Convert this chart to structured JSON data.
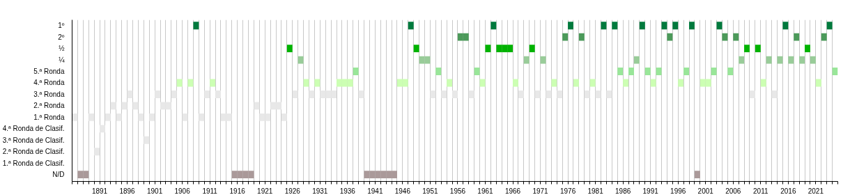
{
  "chart_data": {
    "type": "bar",
    "orientation": "horizontal",
    "grid": "x",
    "categories": [
      "1º",
      "2º",
      "½",
      "¼",
      "5.ª Ronda",
      "4.ª Ronda",
      "3.ª Ronda",
      "2.ª Ronda",
      "1.ª Ronda",
      "4.ª Ronda de Clasif.",
      "3.ª Ronda de Clasif.",
      "2.ª Ronda de Clasif.",
      "1.ª Ronda de Clasif.",
      "N/D"
    ],
    "xlim": [
      1886,
      2025
    ],
    "xticks": [
      {
        "value": 1886,
        "label": null
      },
      {
        "value": 1887,
        "label": null
      },
      {
        "value": 1888,
        "label": null
      },
      {
        "value": 1889,
        "label": null
      },
      {
        "value": 1890,
        "label": null
      },
      1891,
      {
        "value": 1892,
        "label": null
      },
      {
        "value": 1893,
        "label": null
      },
      {
        "value": 1894,
        "label": null
      },
      {
        "value": 1895,
        "label": null
      },
      1896,
      {
        "value": 1897,
        "label": null
      },
      {
        "value": 1898,
        "label": null
      },
      {
        "value": 1899,
        "label": null
      },
      {
        "value": 1900,
        "label": null
      },
      1901,
      {
        "value": 1902,
        "label": null
      },
      {
        "value": 1903,
        "label": null
      },
      {
        "value": 1904,
        "label": null
      },
      {
        "value": 1905,
        "label": null
      },
      1906,
      {
        "value": 1907,
        "label": null
      },
      {
        "value": 1908,
        "label": null
      },
      {
        "value": 1909,
        "label": null
      },
      {
        "value": 1910,
        "label": null
      },
      1911,
      {
        "value": 1912,
        "label": null
      },
      {
        "value": 1913,
        "label": null
      },
      {
        "value": 1914,
        "label": null
      },
      {
        "value": 1915,
        "label": null
      },
      1916,
      {
        "value": 1917,
        "label": null
      },
      {
        "value": 1918,
        "label": null
      },
      {
        "value": 1919,
        "label": null
      },
      {
        "value": 1920,
        "label": null
      },
      1921,
      {
        "value": 1922,
        "label": null
      },
      {
        "value": 1923,
        "label": null
      },
      {
        "value": 1924,
        "label": null
      },
      {
        "value": 1925,
        "label": null
      },
      1926,
      {
        "value": 1927,
        "label": null
      },
      {
        "value": 1928,
        "label": null
      },
      {
        "value": 1929,
        "label": null
      },
      {
        "value": 1930,
        "label": null
      },
      1931,
      {
        "value": 1932,
        "label": null
      },
      {
        "value": 1933,
        "label": null
      },
      {
        "value": 1934,
        "label": null
      },
      {
        "value": 1935,
        "label": null
      },
      1936,
      {
        "value": 1937,
        "label": null
      },
      {
        "value": 1938,
        "label": null
      },
      {
        "value": 1939,
        "label": null
      },
      {
        "value": 1940,
        "label": null
      },
      1941,
      {
        "value": 1942,
        "label": null
      },
      {
        "value": 1943,
        "label": null
      },
      {
        "value": 1944,
        "label": null
      },
      {
        "value": 1945,
        "label": null
      },
      1946,
      {
        "value": 1947,
        "label": null
      },
      {
        "value": 1948,
        "label": null
      },
      {
        "value": 1949,
        "label": null
      },
      {
        "value": 1950,
        "label": null
      },
      1951,
      {
        "value": 1952,
        "label": null
      },
      {
        "value": 1953,
        "label": null
      },
      {
        "value": 1954,
        "label": null
      },
      {
        "value": 1955,
        "label": null
      },
      1956,
      {
        "value": 1957,
        "label": null
      },
      {
        "value": 1958,
        "label": null
      },
      {
        "value": 1959,
        "label": null
      },
      {
        "value": 1960,
        "label": null
      },
      1961,
      {
        "value": 1962,
        "label": null
      },
      {
        "value": 1963,
        "label": null
      },
      {
        "value": 1964,
        "label": null
      },
      {
        "value": 1965,
        "label": null
      },
      1966,
      {
        "value": 1967,
        "label": null
      },
      {
        "value": 1968,
        "label": null
      },
      {
        "value": 1969,
        "label": null
      },
      {
        "value": 1970,
        "label": null
      },
      1971,
      {
        "value": 1972,
        "label": null
      },
      {
        "value": 1973,
        "label": null
      },
      {
        "value": 1974,
        "label": null
      },
      {
        "value": 1975,
        "label": null
      },
      1976,
      {
        "value": 1977,
        "label": null
      },
      {
        "value": 1978,
        "label": null
      },
      {
        "value": 1979,
        "label": null
      },
      {
        "value": 1980,
        "label": null
      },
      1981,
      {
        "value": 1982,
        "label": null
      },
      {
        "value": 1983,
        "label": null
      },
      {
        "value": 1984,
        "label": null
      },
      {
        "value": 1985,
        "label": null
      },
      1986,
      {
        "value": 1987,
        "label": null
      },
      {
        "value": 1988,
        "label": null
      },
      {
        "value": 1989,
        "label": null
      },
      {
        "value": 1990,
        "label": null
      },
      1991,
      {
        "value": 1992,
        "label": null
      },
      {
        "value": 1993,
        "label": null
      },
      {
        "value": 1994,
        "label": null
      },
      {
        "value": 1995,
        "label": null
      },
      1996,
      {
        "value": 1997,
        "label": null
      },
      {
        "value": 1998,
        "label": null
      },
      {
        "value": 1999,
        "label": null
      },
      {
        "value": 2000,
        "label": null
      },
      2001,
      {
        "value": 2002,
        "label": null
      },
      {
        "value": 2003,
        "label": null
      },
      {
        "value": 2004,
        "label": null
      },
      {
        "value": 2005,
        "label": null
      },
      2006,
      {
        "value": 2007,
        "label": null
      },
      {
        "value": 2008,
        "label": null
      },
      {
        "value": 2009,
        "label": null
      },
      {
        "value": 2010,
        "label": null
      },
      2011,
      {
        "value": 2012,
        "label": null
      },
      {
        "value": 2013,
        "label": null
      },
      {
        "value": 2014,
        "label": null
      },
      {
        "value": 2015,
        "label": null
      },
      2016,
      {
        "value": 2017,
        "label": null
      },
      {
        "value": 2018,
        "label": null
      },
      {
        "value": 2019,
        "label": null
      },
      {
        "value": 2020,
        "label": null
      },
      2021,
      {
        "value": 2022,
        "label": null
      },
      {
        "value": 2023,
        "label": null
      },
      {
        "value": 2024,
        "label": null
      },
      {
        "value": 2025,
        "label": null
      }
    ],
    "series": [
      {
        "colors": [
          "#007a3d",
          "#4c9a5a",
          "#00b300",
          "#99cc99",
          "#99e699",
          "#ccffb3",
          "#e8e8e8",
          "#e8e8e8",
          "#e8e8e8",
          "#e8e8e8",
          "#e8e8e8",
          "#e8e8e8",
          null,
          "#aa9999"
        ],
        "base": [
          1908,
          1956,
          1925,
          1927,
          1937,
          1905,
          1896,
          1893,
          1886,
          1891,
          1899,
          1890,
          null,
          1887
        ],
        "values": [
          1,
          1,
          1,
          1,
          1,
          1,
          1,
          1,
          1,
          1,
          1,
          1,
          null,
          1
        ]
      },
      {
        "colors": [
          "#007a3d",
          "#4c9a5a",
          "#00b300",
          "#99cc99",
          "#99e699",
          "#ccffb3",
          "#e8e8e8",
          "#e8e8e8",
          "#e8e8e8",
          null,
          null,
          null,
          null,
          "#aa9999"
        ],
        "base": [
          1947,
          1957,
          1948,
          1949,
          1952,
          1907,
          1901,
          1895,
          1889,
          null,
          null,
          null,
          null,
          1888
        ],
        "values": [
          1,
          1,
          1,
          1,
          1,
          1,
          1,
          1,
          1,
          null,
          null,
          null,
          null,
          1
        ]
      },
      {
        "colors": [
          "#007a3d",
          "#4c9a5a",
          "#00b300",
          "#99cc99",
          "#99e699",
          "#ccffb3",
          "#e8e8e8",
          "#e8e8e8",
          "#e8e8e8",
          null,
          null,
          null,
          null,
          "#aa9999"
        ],
        "base": [
          1962,
          1975,
          1961,
          1950,
          1959,
          1911,
          1904,
          1897,
          1892,
          null,
          null,
          null,
          null,
          1915
        ],
        "values": [
          1,
          1,
          1,
          1,
          1,
          1,
          1,
          1,
          1,
          null,
          null,
          null,
          null,
          1
        ]
      },
      {
        "colors": [
          "#007a3d",
          "#4c9a5a",
          "#00b300",
          "#99cc99",
          "#99e699",
          "#ccffb3",
          "#e8e8e8",
          "#e8e8e8",
          "#e8e8e8",
          null,
          null,
          null,
          null,
          "#aa9999"
        ],
        "base": [
          1976,
          1978,
          1963,
          1968,
          1985,
          1928,
          1910,
          1902,
          1894,
          null,
          null,
          null,
          null,
          1916
        ],
        "values": [
          1,
          1,
          1,
          1,
          1,
          1,
          1,
          1,
          1,
          null,
          null,
          null,
          null,
          1
        ]
      },
      {
        "colors": [
          "#007a3d",
          "#4c9a5a",
          "#00b300",
          "#99cc99",
          "#99e699",
          "#ccffb3",
          "#e8e8e8",
          "#e8e8e8",
          "#e8e8e8",
          null,
          null,
          null,
          null,
          "#aa9999"
        ],
        "base": [
          1982,
          1994,
          1964,
          1971,
          1987,
          1930,
          1912,
          1903,
          1898,
          null,
          null,
          null,
          null,
          1917
        ],
        "values": [
          1,
          1,
          1,
          1,
          1,
          1,
          1,
          1,
          1,
          null,
          null,
          null,
          null,
          1
        ]
      },
      {
        "colors": [
          "#007a3d",
          "#4c9a5a",
          "#00b300",
          "#99cc99",
          "#99e699",
          "#ccffb3",
          "#e8e8e8",
          "#e8e8e8",
          "#e8e8e8",
          null,
          null,
          null,
          null,
          "#aa9999"
        ],
        "base": [
          1984,
          2004,
          1965,
          1988,
          1990,
          1934,
          1926,
          1919,
          1900,
          null,
          null,
          null,
          null,
          1918
        ],
        "values": [
          1,
          1,
          1,
          1,
          1,
          1,
          1,
          1,
          1,
          null,
          null,
          null,
          null,
          1
        ]
      },
      {
        "colors": [
          "#007a3d",
          "#4c9a5a",
          "#00b300",
          "#99cc99",
          "#99e699",
          "#ccffb3",
          "#e8e8e8",
          "#e8e8e8",
          "#e8e8e8",
          null,
          null,
          null,
          null,
          "#aa9999"
        ],
        "base": [
          1989,
          2006,
          1969,
          2007,
          1992,
          1935,
          1929,
          1922,
          1906,
          null,
          null,
          null,
          null,
          1939
        ],
        "values": [
          1,
          1,
          1,
          1,
          1,
          1,
          1,
          1,
          1,
          null,
          null,
          null,
          null,
          1
        ]
      },
      {
        "colors": [
          "#007a3d",
          "#4c9a5a",
          "#00b300",
          "#99cc99",
          "#99e699",
          "#ccffb3",
          "#e8e8e8",
          "#e8e8e8",
          "#e8e8e8",
          null,
          null,
          null,
          null,
          "#aa9999"
        ],
        "base": [
          1993,
          2017,
          2008,
          2012,
          1997,
          1936,
          1931,
          1923,
          1909,
          null,
          null,
          null,
          null,
          1940
        ],
        "values": [
          1,
          1,
          1,
          1,
          1,
          1,
          1,
          1,
          1,
          null,
          null,
          null,
          null,
          1
        ]
      },
      {
        "colors": [
          "#007a3d",
          "#4c9a5a",
          "#00b300",
          "#99cc99",
          "#99e699",
          "#ccffb3",
          "#e8e8e8",
          null,
          "#e8e8e8",
          null,
          null,
          null,
          null,
          "#aa9999"
        ],
        "base": [
          1995,
          2022,
          2010,
          2014,
          2002,
          1945,
          1932,
          null,
          1913,
          null,
          null,
          null,
          null,
          1941
        ],
        "values": [
          1,
          1,
          1,
          1,
          1,
          1,
          1,
          null,
          1,
          null,
          null,
          null,
          null,
          1
        ]
      },
      {
        "colors": [
          "#007a3d",
          null,
          "#00b300",
          "#99cc99",
          "#99e699",
          "#ccffb3",
          "#e8e8e8",
          null,
          "#e8e8e8",
          null,
          null,
          null,
          null,
          "#aa9999"
        ],
        "base": [
          1998,
          null,
          2019,
          2016,
          2005,
          1946,
          1933,
          null,
          1914,
          null,
          null,
          null,
          null,
          1942
        ],
        "values": [
          1,
          null,
          1,
          1,
          1,
          1,
          1,
          null,
          1,
          null,
          null,
          null,
          null,
          1
        ]
      },
      {
        "colors": [
          "#007a3d",
          null,
          null,
          "#99cc99",
          "#99e699",
          "#ccffb3",
          "#e8e8e8",
          null,
          "#e8e8e8",
          null,
          null,
          null,
          null,
          "#aa9999"
        ],
        "base": [
          2003,
          null,
          null,
          2018,
          2024,
          1954,
          1938,
          null,
          1920,
          null,
          null,
          null,
          null,
          1943
        ],
        "values": [
          1,
          null,
          null,
          1,
          1,
          1,
          1,
          null,
          1,
          null,
          null,
          null,
          null,
          1
        ]
      },
      {
        "colors": [
          "#007a3d",
          null,
          null,
          "#99cc99",
          null,
          "#ccffb3",
          "#e8e8e8",
          null,
          "#e8e8e8",
          null,
          null,
          null,
          null,
          "#aa9999"
        ],
        "base": [
          2015,
          null,
          null,
          2020,
          null,
          1960,
          1951,
          null,
          1921,
          null,
          null,
          null,
          null,
          1944
        ],
        "values": [
          1,
          null,
          null,
          1,
          null,
          1,
          1,
          null,
          1,
          null,
          null,
          null,
          null,
          1
        ]
      },
      {
        "colors": [
          "#007a3d",
          null,
          null,
          null,
          null,
          "#ccffb3",
          "#e8e8e8",
          null,
          "#e8e8e8",
          null,
          null,
          null,
          null,
          "#aa9999"
        ],
        "base": [
          2023,
          null,
          null,
          null,
          null,
          1966,
          1953,
          null,
          1924,
          null,
          null,
          null,
          null,
          1999
        ],
        "values": [
          1,
          null,
          null,
          null,
          null,
          1,
          1,
          null,
          1,
          null,
          null,
          null,
          null,
          1
        ]
      },
      {
        "colors": [
          null,
          null,
          null,
          null,
          null,
          "#ccffb3",
          "#e8e8e8",
          null,
          null,
          null,
          null,
          null,
          null,
          null
        ],
        "base": [
          null,
          null,
          null,
          null,
          null,
          1973,
          1955,
          null,
          null,
          null,
          null,
          null,
          null,
          null
        ],
        "values": [
          null,
          null,
          null,
          null,
          null,
          1,
          1,
          null,
          null,
          null,
          null,
          null,
          null,
          null
        ]
      },
      {
        "colors": [
          null,
          null,
          null,
          null,
          null,
          "#ccffb3",
          "#e8e8e8",
          null,
          null,
          null,
          null,
          null,
          null,
          null
        ],
        "base": [
          null,
          null,
          null,
          null,
          null,
          1977,
          1958,
          null,
          null,
          null,
          null,
          null,
          null,
          null
        ],
        "values": [
          null,
          null,
          null,
          null,
          null,
          1,
          1,
          null,
          null,
          null,
          null,
          null,
          null,
          null
        ]
      },
      {
        "colors": [
          null,
          null,
          null,
          null,
          null,
          "#ccffb3",
          "#e8e8e8",
          null,
          null,
          null,
          null,
          null,
          null,
          null
        ],
        "base": [
          null,
          null,
          null,
          null,
          null,
          1980,
          1967,
          null,
          null,
          null,
          null,
          null,
          null,
          null
        ],
        "values": [
          null,
          null,
          null,
          null,
          null,
          1,
          1,
          null,
          null,
          null,
          null,
          null,
          null,
          null
        ]
      },
      {
        "colors": [
          null,
          null,
          null,
          null,
          null,
          "#ccffb3",
          "#e8e8e8",
          null,
          null,
          null,
          null,
          null,
          null,
          null
        ],
        "base": [
          null,
          null,
          null,
          null,
          null,
          1986,
          1970,
          null,
          null,
          null,
          null,
          null,
          null,
          null
        ],
        "values": [
          null,
          null,
          null,
          null,
          null,
          1,
          1,
          null,
          null,
          null,
          null,
          null,
          null,
          null
        ]
      },
      {
        "colors": [
          null,
          null,
          null,
          null,
          null,
          "#ccffb3",
          "#e8e8e8",
          null,
          null,
          null,
          null,
          null,
          null,
          null
        ],
        "base": [
          null,
          null,
          null,
          null,
          null,
          1991,
          1972,
          null,
          null,
          null,
          null,
          null,
          null,
          null
        ],
        "values": [
          null,
          null,
          null,
          null,
          null,
          1,
          1,
          null,
          null,
          null,
          null,
          null,
          null,
          null
        ]
      },
      {
        "colors": [
          null,
          null,
          null,
          null,
          null,
          "#ccffb3",
          "#e8e8e8",
          null,
          null,
          null,
          null,
          null,
          null,
          null
        ],
        "base": [
          null,
          null,
          null,
          null,
          null,
          1996,
          1974,
          null,
          null,
          null,
          null,
          null,
          null,
          null
        ],
        "values": [
          null,
          null,
          null,
          null,
          null,
          1,
          1,
          null,
          null,
          null,
          null,
          null,
          null,
          null
        ]
      },
      {
        "colors": [
          null,
          null,
          null,
          null,
          null,
          "#ccffb3",
          "#e8e8e8",
          null,
          null,
          null,
          null,
          null,
          null,
          null
        ],
        "base": [
          null,
          null,
          null,
          null,
          null,
          2000,
          1979,
          null,
          null,
          null,
          null,
          null,
          null,
          null
        ],
        "values": [
          null,
          null,
          null,
          null,
          null,
          1,
          1,
          null,
          null,
          null,
          null,
          null,
          null,
          null
        ]
      },
      {
        "colors": [
          null,
          null,
          null,
          null,
          null,
          "#ccffb3",
          "#e8e8e8",
          null,
          null,
          null,
          null,
          null,
          null,
          null
        ],
        "base": [
          null,
          null,
          null,
          null,
          null,
          2001,
          1981,
          null,
          null,
          null,
          null,
          null,
          null,
          null
        ],
        "values": [
          null,
          null,
          null,
          null,
          null,
          1,
          1,
          null,
          null,
          null,
          null,
          null,
          null,
          null
        ]
      },
      {
        "colors": [
          null,
          null,
          null,
          null,
          null,
          "#ccffb3",
          "#e8e8e8",
          null,
          null,
          null,
          null,
          null,
          null,
          null
        ],
        "base": [
          null,
          null,
          null,
          null,
          null,
          2011,
          1983,
          null,
          null,
          null,
          null,
          null,
          null,
          null
        ],
        "values": [
          null,
          null,
          null,
          null,
          null,
          1,
          1,
          null,
          null,
          null,
          null,
          null,
          null,
          null
        ]
      },
      {
        "colors": [
          null,
          null,
          null,
          null,
          null,
          "#ccffb3",
          "#e8e8e8",
          null,
          null,
          null,
          null,
          null,
          null,
          null
        ],
        "base": [
          null,
          null,
          null,
          null,
          null,
          2021,
          2009,
          null,
          null,
          null,
          null,
          null,
          null,
          null
        ],
        "values": [
          null,
          null,
          null,
          null,
          null,
          1,
          1,
          null,
          null,
          null,
          null,
          null,
          null,
          null
        ]
      },
      {
        "colors": [
          null,
          null,
          null,
          null,
          null,
          null,
          "#e8e8e8",
          null,
          null,
          null,
          null,
          null,
          null,
          null
        ],
        "base": [
          null,
          null,
          null,
          null,
          null,
          null,
          2013,
          null,
          null,
          null,
          null,
          null,
          null,
          null
        ],
        "values": [
          null,
          null,
          null,
          null,
          null,
          null,
          1,
          null,
          null,
          null,
          null,
          null,
          null,
          null
        ]
      }
    ]
  }
}
